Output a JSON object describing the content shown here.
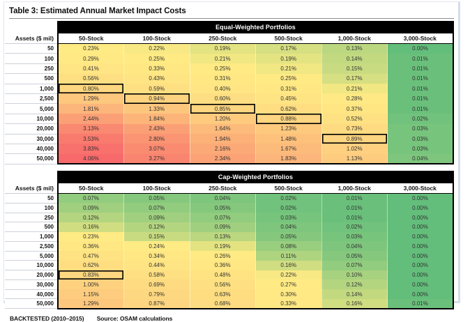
{
  "title": "Table 3: Estimated Annual Market Impact Costs",
  "footer": {
    "backtested": "BACKTESTED (2010–2015)",
    "source": "Source: OSAM calculations"
  },
  "heatmap": {
    "min_color": "#63BE7B",
    "mid_color": "#FFEB84",
    "max_color": "#F8696B",
    "scale_rule": "3-color scale green→yellow→red, min→median→max computed across both tables",
    "highlight_outline_color": "#000000"
  },
  "chart_data": [
    {
      "type": "heatmap",
      "title": "Equal-Weighted Portfolios",
      "corner_header": "Assets ($ mil)",
      "columns": [
        "50-Stock",
        "100-Stock",
        "250-Stock",
        "500-Stock",
        "1,000-Stock",
        "3,000-Stock"
      ],
      "rows": [
        "50",
        "100",
        "250",
        "500",
        "1,000",
        "2,500",
        "5,000",
        "10,000",
        "20,000",
        "30,000",
        "40,000",
        "50,000"
      ],
      "unit": "%",
      "values": [
        [
          0.23,
          0.22,
          0.19,
          0.17,
          0.13,
          0.0
        ],
        [
          0.29,
          0.25,
          0.21,
          0.19,
          0.14,
          0.01
        ],
        [
          0.41,
          0.33,
          0.25,
          0.21,
          0.15,
          0.01
        ],
        [
          0.56,
          0.43,
          0.31,
          0.25,
          0.17,
          0.01
        ],
        [
          0.8,
          0.59,
          0.4,
          0.31,
          0.21,
          0.01
        ],
        [
          1.29,
          0.94,
          0.6,
          0.45,
          0.28,
          0.01
        ],
        [
          1.81,
          1.33,
          0.85,
          0.62,
          0.37,
          0.01
        ],
        [
          2.44,
          1.84,
          1.2,
          0.88,
          0.52,
          0.02
        ],
        [
          3.13,
          2.43,
          1.64,
          1.23,
          0.73,
          0.03
        ],
        [
          3.53,
          2.8,
          1.94,
          1.48,
          0.89,
          0.03
        ],
        [
          3.83,
          3.07,
          2.16,
          1.67,
          1.02,
          0.03
        ],
        [
          4.06,
          3.27,
          2.34,
          1.83,
          1.13,
          0.04
        ]
      ],
      "highlighted_cells": [
        [
          4,
          0
        ],
        [
          5,
          1
        ],
        [
          6,
          2
        ],
        [
          7,
          3
        ],
        [
          9,
          4
        ]
      ]
    },
    {
      "type": "heatmap",
      "title": "Cap-Weighted Portfolios",
      "corner_header": "Assets ($ mil)",
      "columns": [
        "50-Stock",
        "100-Stock",
        "250-Stock",
        "500-Stock",
        "1,000-Stock",
        "3,000-Stock"
      ],
      "rows": [
        "50",
        "100",
        "250",
        "500",
        "1,000",
        "2,500",
        "5,000",
        "10,000",
        "20,000",
        "30,000",
        "40,000",
        "50,000"
      ],
      "unit": "%",
      "values": [
        [
          0.07,
          0.05,
          0.04,
          0.02,
          0.01,
          0.0
        ],
        [
          0.09,
          0.07,
          0.05,
          0.02,
          0.01,
          0.0
        ],
        [
          0.12,
          0.09,
          0.07,
          0.03,
          0.01,
          0.0
        ],
        [
          0.16,
          0.12,
          0.09,
          0.04,
          0.02,
          0.0
        ],
        [
          0.23,
          0.15,
          0.13,
          0.05,
          0.03,
          0.0
        ],
        [
          0.36,
          0.24,
          0.19,
          0.08,
          0.04,
          0.0
        ],
        [
          0.47,
          0.34,
          0.26,
          0.11,
          0.05,
          0.0
        ],
        [
          0.62,
          0.44,
          0.36,
          0.16,
          0.07,
          0.0
        ],
        [
          0.83,
          0.58,
          0.48,
          0.22,
          0.1,
          0.0
        ],
        [
          1.0,
          0.69,
          0.56,
          0.27,
          0.12,
          0.0
        ],
        [
          1.15,
          0.79,
          0.63,
          0.3,
          0.14,
          0.0
        ],
        [
          1.29,
          0.87,
          0.68,
          0.33,
          0.16,
          0.01
        ]
      ],
      "highlighted_cells": [
        [
          8,
          0
        ]
      ]
    }
  ]
}
